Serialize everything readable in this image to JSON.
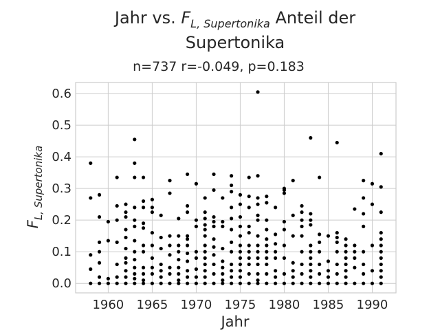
{
  "chart_data": {
    "type": "scatter",
    "title": {
      "prefix": "Jahr vs. ",
      "var_main": "F",
      "var_sub": "L, Supertonika",
      "suffix": " Anteil der",
      "line2": "Supertonika"
    },
    "subtitle": "n=737 r=-0.049, p=0.183",
    "xlabel": "Jahr",
    "ylabel": {
      "main": "F",
      "sub": "L, Supertonika"
    },
    "xlim": [
      1956.3,
      1992.7
    ],
    "ylim": [
      -0.03,
      0.635
    ],
    "x_ticks": [
      1960,
      1965,
      1970,
      1975,
      1980,
      1985,
      1990
    ],
    "x_tick_labels": [
      "1960",
      "1965",
      "1970",
      "1975",
      "1980",
      "1985",
      "1990"
    ],
    "y_ticks": [
      0.0,
      0.1,
      0.2,
      0.3,
      0.4,
      0.5,
      0.6
    ],
    "y_tick_labels": [
      "0.0",
      "0.1",
      "0.2",
      "0.3",
      "0.4",
      "0.5",
      "0.6"
    ],
    "grid": true,
    "marker_color": "#000000",
    "points": [
      [
        1958,
        0.38
      ],
      [
        1958,
        0.27
      ],
      [
        1958,
        0.09
      ],
      [
        1958,
        0.045
      ],
      [
        1958,
        0.0
      ],
      [
        1959,
        0.28
      ],
      [
        1959,
        0.21
      ],
      [
        1959,
        0.13
      ],
      [
        1959,
        0.1
      ],
      [
        1959,
        0.065
      ],
      [
        1959,
        0.02
      ],
      [
        1959,
        0.0
      ],
      [
        1960,
        0.195
      ],
      [
        1960,
        0.135
      ],
      [
        1960,
        0.015
      ],
      [
        1960,
        0.0
      ],
      [
        1961,
        0.335
      ],
      [
        1961,
        0.245
      ],
      [
        1961,
        0.2
      ],
      [
        1961,
        0.13
      ],
      [
        1961,
        0.06
      ],
      [
        1961,
        0.02
      ],
      [
        1961,
        0.0
      ],
      [
        1962,
        0.25
      ],
      [
        1962,
        0.225
      ],
      [
        1962,
        0.21
      ],
      [
        1962,
        0.17
      ],
      [
        1962,
        0.145
      ],
      [
        1962,
        0.11
      ],
      [
        1962,
        0.08
      ],
      [
        1962,
        0.065
      ],
      [
        1962,
        0.04
      ],
      [
        1962,
        0.02
      ],
      [
        1962,
        0.0
      ],
      [
        1963,
        0.455
      ],
      [
        1963,
        0.38
      ],
      [
        1963,
        0.335
      ],
      [
        1963,
        0.24
      ],
      [
        1963,
        0.2
      ],
      [
        1963,
        0.18
      ],
      [
        1963,
        0.135
      ],
      [
        1963,
        0.1
      ],
      [
        1963,
        0.075
      ],
      [
        1963,
        0.05
      ],
      [
        1963,
        0.03
      ],
      [
        1963,
        0.015
      ],
      [
        1963,
        0.0
      ],
      [
        1964,
        0.335
      ],
      [
        1964,
        0.26
      ],
      [
        1964,
        0.24
      ],
      [
        1964,
        0.19
      ],
      [
        1964,
        0.175
      ],
      [
        1964,
        0.12
      ],
      [
        1964,
        0.1
      ],
      [
        1964,
        0.05
      ],
      [
        1964,
        0.03
      ],
      [
        1964,
        0.01
      ],
      [
        1964,
        0.0
      ],
      [
        1965,
        0.265
      ],
      [
        1965,
        0.24
      ],
      [
        1965,
        0.225
      ],
      [
        1965,
        0.16
      ],
      [
        1965,
        0.12
      ],
      [
        1965,
        0.08
      ],
      [
        1965,
        0.05
      ],
      [
        1965,
        0.03
      ],
      [
        1965,
        0.0
      ],
      [
        1966,
        0.215
      ],
      [
        1966,
        0.145
      ],
      [
        1966,
        0.11
      ],
      [
        1966,
        0.06
      ],
      [
        1966,
        0.04
      ],
      [
        1966,
        0.02
      ],
      [
        1966,
        0.0
      ],
      [
        1967,
        0.325
      ],
      [
        1967,
        0.285
      ],
      [
        1967,
        0.15
      ],
      [
        1967,
        0.12
      ],
      [
        1967,
        0.09
      ],
      [
        1967,
        0.05
      ],
      [
        1967,
        0.03
      ],
      [
        1967,
        0.0
      ],
      [
        1968,
        0.205
      ],
      [
        1968,
        0.15
      ],
      [
        1968,
        0.12
      ],
      [
        1968,
        0.1
      ],
      [
        1968,
        0.075
      ],
      [
        1968,
        0.05
      ],
      [
        1968,
        0.03
      ],
      [
        1968,
        0.01
      ],
      [
        1968,
        0.0
      ],
      [
        1969,
        0.345
      ],
      [
        1969,
        0.245
      ],
      [
        1969,
        0.225
      ],
      [
        1969,
        0.15
      ],
      [
        1969,
        0.14
      ],
      [
        1969,
        0.12
      ],
      [
        1969,
        0.095
      ],
      [
        1969,
        0.07
      ],
      [
        1969,
        0.04
      ],
      [
        1969,
        0.02
      ],
      [
        1969,
        0.0
      ],
      [
        1970,
        0.315
      ],
      [
        1970,
        0.2
      ],
      [
        1970,
        0.18
      ],
      [
        1970,
        0.1
      ],
      [
        1970,
        0.08
      ],
      [
        1970,
        0.045
      ],
      [
        1970,
        0.02
      ],
      [
        1970,
        0.0
      ],
      [
        1971,
        0.27
      ],
      [
        1971,
        0.225
      ],
      [
        1971,
        0.205
      ],
      [
        1971,
        0.185
      ],
      [
        1971,
        0.17
      ],
      [
        1971,
        0.15
      ],
      [
        1971,
        0.12
      ],
      [
        1971,
        0.1
      ],
      [
        1971,
        0.08
      ],
      [
        1971,
        0.06
      ],
      [
        1971,
        0.04
      ],
      [
        1971,
        0.02
      ],
      [
        1971,
        0.0
      ],
      [
        1972,
        0.345
      ],
      [
        1972,
        0.295
      ],
      [
        1972,
        0.21
      ],
      [
        1972,
        0.195
      ],
      [
        1972,
        0.18
      ],
      [
        1972,
        0.14
      ],
      [
        1972,
        0.115
      ],
      [
        1972,
        0.09
      ],
      [
        1972,
        0.06
      ],
      [
        1972,
        0.03
      ],
      [
        1972,
        0.0
      ],
      [
        1973,
        0.27
      ],
      [
        1973,
        0.195
      ],
      [
        1973,
        0.18
      ],
      [
        1973,
        0.11
      ],
      [
        1973,
        0.07
      ],
      [
        1973,
        0.05
      ],
      [
        1973,
        0.03
      ],
      [
        1973,
        0.01
      ],
      [
        1973,
        0.0
      ],
      [
        1974,
        0.34
      ],
      [
        1974,
        0.31
      ],
      [
        1974,
        0.29
      ],
      [
        1974,
        0.24
      ],
      [
        1974,
        0.205
      ],
      [
        1974,
        0.17
      ],
      [
        1974,
        0.13
      ],
      [
        1974,
        0.1
      ],
      [
        1974,
        0.06
      ],
      [
        1974,
        0.04
      ],
      [
        1974,
        0.02
      ],
      [
        1974,
        0.0
      ],
      [
        1975,
        0.28
      ],
      [
        1975,
        0.25
      ],
      [
        1975,
        0.21
      ],
      [
        1975,
        0.18
      ],
      [
        1975,
        0.15
      ],
      [
        1975,
        0.12
      ],
      [
        1975,
        0.1
      ],
      [
        1975,
        0.08
      ],
      [
        1975,
        0.06
      ],
      [
        1975,
        0.04
      ],
      [
        1975,
        0.02
      ],
      [
        1975,
        0.0
      ],
      [
        1976,
        0.335
      ],
      [
        1976,
        0.275
      ],
      [
        1976,
        0.24
      ],
      [
        1976,
        0.18
      ],
      [
        1976,
        0.16
      ],
      [
        1976,
        0.12
      ],
      [
        1976,
        0.1
      ],
      [
        1976,
        0.08
      ],
      [
        1976,
        0.06
      ],
      [
        1976,
        0.03
      ],
      [
        1976,
        0.0
      ],
      [
        1977,
        0.605
      ],
      [
        1977,
        0.34
      ],
      [
        1977,
        0.27
      ],
      [
        1977,
        0.25
      ],
      [
        1977,
        0.215
      ],
      [
        1977,
        0.2
      ],
      [
        1977,
        0.15
      ],
      [
        1977,
        0.12
      ],
      [
        1977,
        0.1
      ],
      [
        1977,
        0.08
      ],
      [
        1977,
        0.06
      ],
      [
        1977,
        0.03
      ],
      [
        1977,
        0.01
      ],
      [
        1977,
        0.0
      ],
      [
        1978,
        0.275
      ],
      [
        1978,
        0.255
      ],
      [
        1978,
        0.2
      ],
      [
        1978,
        0.17
      ],
      [
        1978,
        0.14
      ],
      [
        1978,
        0.12
      ],
      [
        1978,
        0.1
      ],
      [
        1978,
        0.08
      ],
      [
        1978,
        0.06
      ],
      [
        1978,
        0.03
      ],
      [
        1978,
        0.0
      ],
      [
        1979,
        0.24
      ],
      [
        1979,
        0.155
      ],
      [
        1979,
        0.125
      ],
      [
        1979,
        0.1
      ],
      [
        1979,
        0.08
      ],
      [
        1979,
        0.04
      ],
      [
        1979,
        0.02
      ],
      [
        1979,
        0.0
      ],
      [
        1980,
        0.3
      ],
      [
        1980,
        0.295
      ],
      [
        1980,
        0.285
      ],
      [
        1980,
        0.195
      ],
      [
        1980,
        0.17
      ],
      [
        1980,
        0.12
      ],
      [
        1980,
        0.08
      ],
      [
        1980,
        0.03
      ],
      [
        1980,
        0.0
      ],
      [
        1981,
        0.325
      ],
      [
        1981,
        0.215
      ],
      [
        1981,
        0.15
      ],
      [
        1981,
        0.065
      ],
      [
        1981,
        0.04
      ],
      [
        1981,
        0.02
      ],
      [
        1981,
        0.0
      ],
      [
        1982,
        0.245
      ],
      [
        1982,
        0.225
      ],
      [
        1982,
        0.2
      ],
      [
        1982,
        0.18
      ],
      [
        1982,
        0.15
      ],
      [
        1982,
        0.1
      ],
      [
        1982,
        0.06
      ],
      [
        1982,
        0.03
      ],
      [
        1982,
        0.0
      ],
      [
        1983,
        0.46
      ],
      [
        1983,
        0.22
      ],
      [
        1983,
        0.2
      ],
      [
        1983,
        0.185
      ],
      [
        1983,
        0.12
      ],
      [
        1983,
        0.1
      ],
      [
        1983,
        0.08
      ],
      [
        1983,
        0.06
      ],
      [
        1983,
        0.04
      ],
      [
        1983,
        0.02
      ],
      [
        1983,
        0.0
      ],
      [
        1984,
        0.335
      ],
      [
        1984,
        0.155
      ],
      [
        1984,
        0.13
      ],
      [
        1984,
        0.1
      ],
      [
        1984,
        0.06
      ],
      [
        1984,
        0.03
      ],
      [
        1984,
        0.0
      ],
      [
        1985,
        0.15
      ],
      [
        1985,
        0.07
      ],
      [
        1985,
        0.04
      ],
      [
        1985,
        0.02
      ],
      [
        1985,
        0.0
      ],
      [
        1986,
        0.445
      ],
      [
        1986,
        0.16
      ],
      [
        1986,
        0.145
      ],
      [
        1986,
        0.13
      ],
      [
        1986,
        0.1
      ],
      [
        1986,
        0.06
      ],
      [
        1986,
        0.03
      ],
      [
        1986,
        0.0
      ],
      [
        1987,
        0.14
      ],
      [
        1987,
        0.12
      ],
      [
        1987,
        0.1
      ],
      [
        1987,
        0.08
      ],
      [
        1987,
        0.06
      ],
      [
        1987,
        0.04
      ],
      [
        1987,
        0.02
      ],
      [
        1987,
        0.0
      ],
      [
        1988,
        0.235
      ],
      [
        1988,
        0.12
      ],
      [
        1988,
        0.1
      ],
      [
        1988,
        0.08
      ],
      [
        1988,
        0.05
      ],
      [
        1988,
        0.0
      ],
      [
        1989,
        0.325
      ],
      [
        1989,
        0.27
      ],
      [
        1989,
        0.22
      ],
      [
        1989,
        0.18
      ],
      [
        1989,
        0.1
      ],
      [
        1989,
        0.06
      ],
      [
        1989,
        0.03
      ],
      [
        1989,
        0.0
      ],
      [
        1990,
        0.315
      ],
      [
        1990,
        0.25
      ],
      [
        1990,
        0.12
      ],
      [
        1990,
        0.04
      ],
      [
        1990,
        0.0
      ],
      [
        1991,
        0.41
      ],
      [
        1991,
        0.305
      ],
      [
        1991,
        0.225
      ],
      [
        1991,
        0.16
      ],
      [
        1991,
        0.14
      ],
      [
        1991,
        0.12
      ],
      [
        1991,
        0.1
      ],
      [
        1991,
        0.08
      ],
      [
        1991,
        0.06
      ],
      [
        1991,
        0.04
      ],
      [
        1991,
        0.02
      ],
      [
        1991,
        0.0
      ]
    ]
  }
}
